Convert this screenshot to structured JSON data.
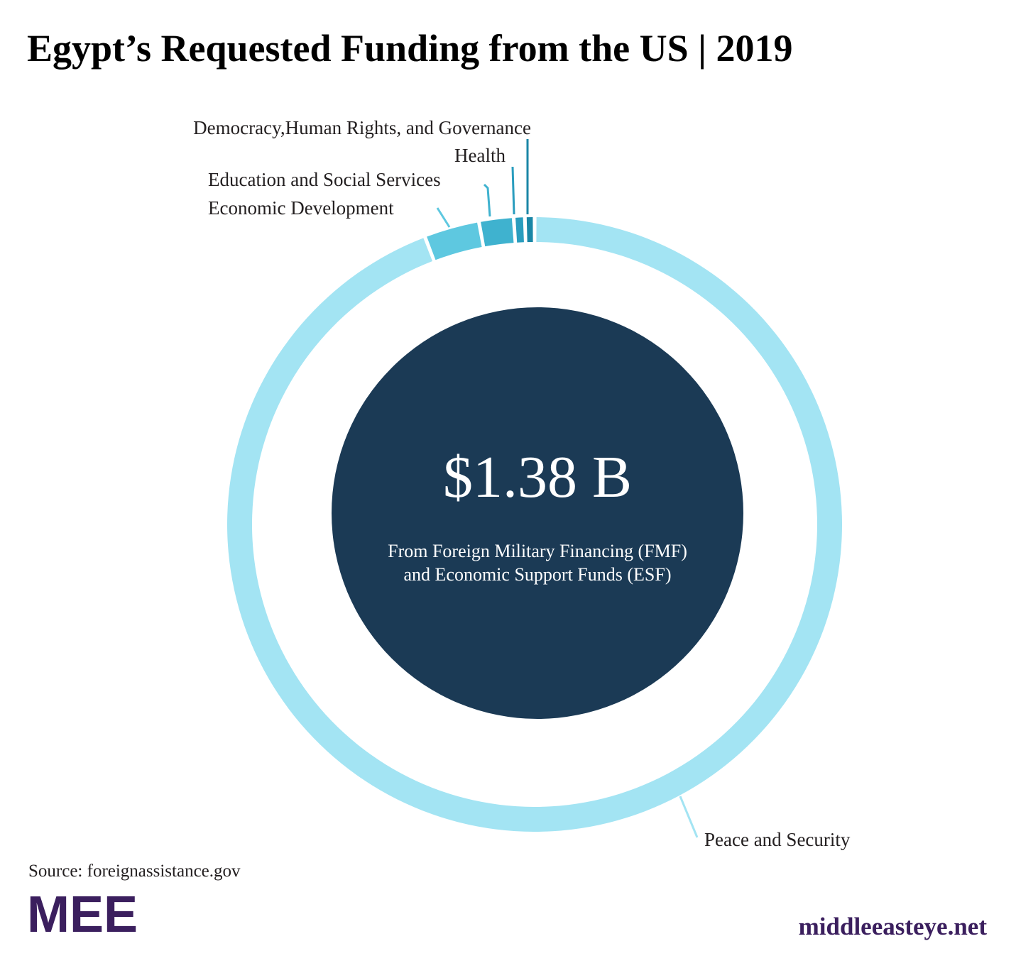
{
  "chart_data": {
    "type": "donut",
    "title": "Egypt’s Requested Funding from the US  | 2019",
    "center_value": "$1.38 B",
    "center_note": [
      "From Foreign Military Financing (FMF)",
      "and Economic Support Funds (ESF)"
    ],
    "categories": [
      "Peace and Security",
      "Economic Development",
      "Education and Social Services",
      "Health",
      "Democracy,Human Rights, and Governance"
    ],
    "values": [
      1300,
      40,
      25,
      8,
      7
    ],
    "colors": [
      "#a3e4f3",
      "#5ec8e0",
      "#3fb2cf",
      "#2a9dbe",
      "#1a86a6"
    ],
    "center_color": "#1b3a55",
    "source": "Source: foreignassistance.gov",
    "logo": "MEE",
    "website": "middleeasteye.net"
  }
}
